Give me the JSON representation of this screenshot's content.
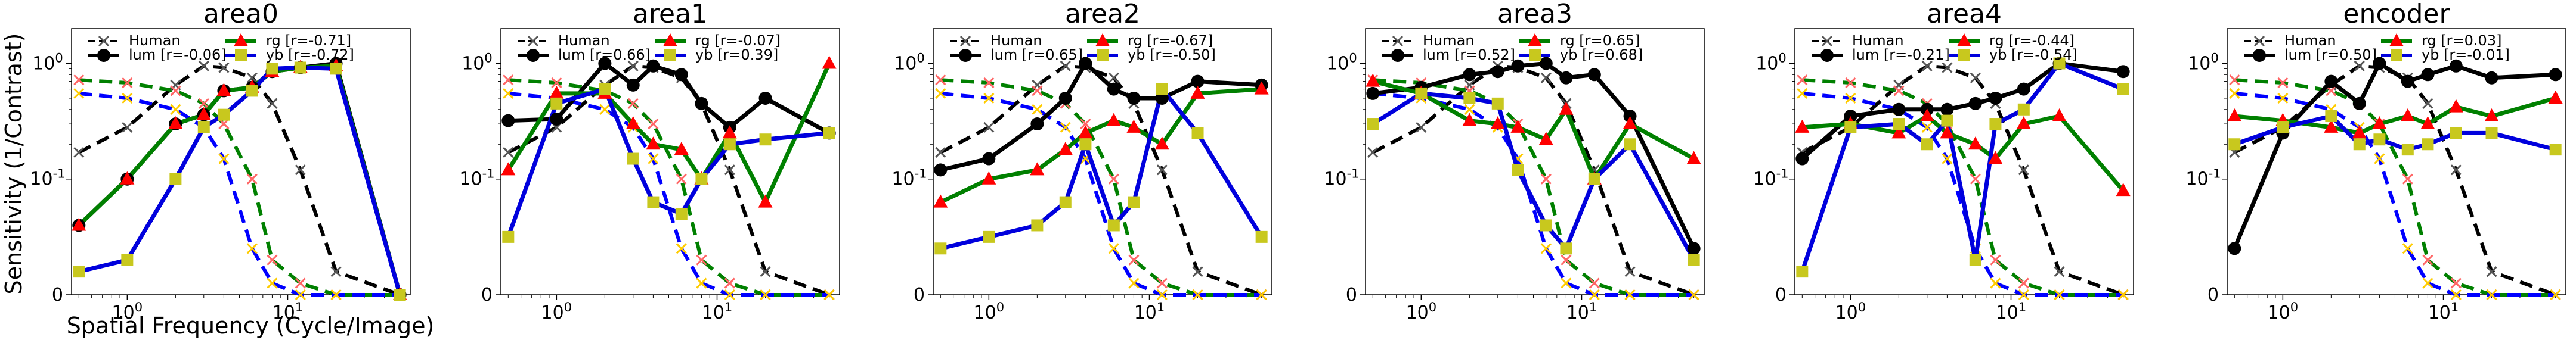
{
  "figure": {
    "ylabel": "Sensitivity (1/Contrast)",
    "xlabel": "Spatial Frequency (Cycle/Image)"
  },
  "colors": {
    "human_lum": "#222222",
    "human_rg": "#ff6666",
    "human_yb": "#ffcc00",
    "lum": "#000000",
    "rg": "#008000",
    "rg_marker": "#ff0000",
    "yb": "#0000dd",
    "yb_marker": "#c8c81e",
    "dashed_lum": "#000000",
    "dashed_rg": "#008000",
    "dashed_yb": "#0000ff"
  },
  "legend_labels": {
    "human": "Human",
    "lum": "lum",
    "rg": "rg",
    "yb": "yb"
  },
  "chart_data": [
    {
      "type": "line",
      "title": "area0",
      "xscale": "log",
      "yscale": "symlog",
      "xlim": [
        0.45,
        58
      ],
      "ylim": [
        0,
        2
      ],
      "xticks": [
        "10^0",
        "10^1"
      ],
      "yticks": [
        "0",
        "10^-1",
        "10^0"
      ],
      "legend": {
        "position": "top-center",
        "r": {
          "lum": "[r=-0.06]",
          "rg": "[r=-0.71]",
          "yb": "[r=-0.72]"
        }
      },
      "x": [
        0.5,
        1,
        2,
        3,
        4,
        6,
        8,
        12,
        20,
        50
      ],
      "human": {
        "lum": [
          0.17,
          0.28,
          0.65,
          0.95,
          0.92,
          0.75,
          0.45,
          0.12,
          0.02,
          0.0
        ],
        "rg": [
          0.72,
          0.68,
          0.58,
          0.45,
          0.3,
          0.1,
          0.03,
          0.01,
          0.0,
          0.0
        ],
        "yb": [
          0.55,
          0.5,
          0.4,
          0.28,
          0.15,
          0.04,
          0.01,
          0.0,
          0.0,
          0.0
        ]
      },
      "series": [
        {
          "name": "lum",
          "values": [
            0.06,
            0.1,
            0.3,
            0.36,
            0.58,
            0.62,
            0.85,
            0.92,
            1.0,
            0.0
          ]
        },
        {
          "name": "rg",
          "values": [
            0.06,
            0.1,
            0.3,
            0.36,
            0.58,
            0.62,
            0.85,
            0.92,
            0.95,
            0.0
          ]
        },
        {
          "name": "yb",
          "values": [
            0.02,
            0.03,
            0.1,
            0.28,
            0.36,
            0.58,
            0.9,
            0.92,
            0.9,
            0.0
          ]
        }
      ]
    },
    {
      "type": "line",
      "title": "area1",
      "xscale": "log",
      "yscale": "symlog",
      "xlim": [
        0.45,
        58
      ],
      "ylim": [
        0,
        2
      ],
      "xticks": [
        "10^0",
        "10^1"
      ],
      "yticks": [
        "0",
        "10^-1",
        "10^0"
      ],
      "legend": {
        "position": "top-center",
        "r": {
          "lum": "[r=0.66]",
          "rg": "[r=-0.07]",
          "yb": "[r=0.39]"
        }
      },
      "x": [
        0.5,
        1,
        2,
        3,
        4,
        6,
        8,
        12,
        20,
        50
      ],
      "human": {
        "lum": [
          0.17,
          0.28,
          0.65,
          0.95,
          0.92,
          0.75,
          0.45,
          0.12,
          0.02,
          0.0
        ],
        "rg": [
          0.72,
          0.68,
          0.58,
          0.45,
          0.3,
          0.1,
          0.03,
          0.01,
          0.0,
          0.0
        ],
        "yb": [
          0.55,
          0.5,
          0.4,
          0.28,
          0.15,
          0.04,
          0.01,
          0.0,
          0.0,
          0.0
        ]
      },
      "series": [
        {
          "name": "lum",
          "values": [
            0.32,
            0.33,
            1.0,
            0.65,
            0.95,
            0.8,
            0.45,
            0.28,
            0.5,
            0.25
          ]
        },
        {
          "name": "rg",
          "values": [
            0.12,
            0.55,
            0.55,
            0.3,
            0.2,
            0.18,
            0.1,
            0.25,
            0.08,
            1.0
          ]
        },
        {
          "name": "yb",
          "values": [
            0.05,
            0.45,
            0.6,
            0.15,
            0.08,
            0.07,
            0.1,
            0.2,
            0.22,
            0.25
          ]
        }
      ]
    },
    {
      "type": "line",
      "title": "area2",
      "xscale": "log",
      "yscale": "symlog",
      "xlim": [
        0.45,
        58
      ],
      "ylim": [
        0,
        2
      ],
      "xticks": [
        "10^0",
        "10^1"
      ],
      "yticks": [
        "0",
        "10^-1",
        "10^0"
      ],
      "legend": {
        "position": "top-center",
        "r": {
          "lum": "[r=0.65]",
          "rg": "[r=-0.67]",
          "yb": "[r=-0.50]"
        }
      },
      "x": [
        0.5,
        1,
        2,
        3,
        4,
        6,
        8,
        12,
        20,
        50
      ],
      "human": {
        "lum": [
          0.17,
          0.28,
          0.65,
          0.95,
          0.92,
          0.75,
          0.45,
          0.12,
          0.02,
          0.0
        ],
        "rg": [
          0.72,
          0.68,
          0.58,
          0.45,
          0.3,
          0.1,
          0.03,
          0.01,
          0.0,
          0.0
        ],
        "yb": [
          0.55,
          0.5,
          0.4,
          0.28,
          0.15,
          0.04,
          0.01,
          0.0,
          0.0,
          0.0
        ]
      },
      "series": [
        {
          "name": "lum",
          "values": [
            0.12,
            0.15,
            0.3,
            0.5,
            1.0,
            0.6,
            0.5,
            0.5,
            0.7,
            0.65
          ]
        },
        {
          "name": "rg",
          "values": [
            0.08,
            0.1,
            0.12,
            0.18,
            0.25,
            0.32,
            0.28,
            0.2,
            0.55,
            0.6
          ]
        },
        {
          "name": "yb",
          "values": [
            0.04,
            0.05,
            0.06,
            0.08,
            0.2,
            0.06,
            0.08,
            0.6,
            0.25,
            0.05
          ]
        }
      ]
    },
    {
      "type": "line",
      "title": "area3",
      "xscale": "log",
      "yscale": "symlog",
      "xlim": [
        0.45,
        58
      ],
      "ylim": [
        0,
        2
      ],
      "xticks": [
        "10^0",
        "10^1"
      ],
      "yticks": [
        "0",
        "10^-1",
        "10^0"
      ],
      "legend": {
        "position": "top-center",
        "r": {
          "lum": "[r=0.52]",
          "rg": "[r=0.65]",
          "yb": "[r=0.68]"
        }
      },
      "x": [
        0.5,
        1,
        2,
        3,
        4,
        6,
        8,
        12,
        20,
        50
      ],
      "human": {
        "lum": [
          0.17,
          0.28,
          0.65,
          0.95,
          0.92,
          0.75,
          0.45,
          0.12,
          0.02,
          0.0
        ],
        "rg": [
          0.72,
          0.68,
          0.58,
          0.45,
          0.3,
          0.1,
          0.03,
          0.01,
          0.0,
          0.0
        ],
        "yb": [
          0.55,
          0.5,
          0.4,
          0.28,
          0.15,
          0.04,
          0.01,
          0.0,
          0.0,
          0.0
        ]
      },
      "series": [
        {
          "name": "lum",
          "values": [
            0.55,
            0.62,
            0.8,
            0.85,
            0.95,
            1.0,
            0.75,
            0.8,
            0.35,
            0.04
          ]
        },
        {
          "name": "rg",
          "values": [
            0.7,
            0.55,
            0.32,
            0.3,
            0.28,
            0.22,
            0.4,
            0.1,
            0.3,
            0.15
          ]
        },
        {
          "name": "yb",
          "values": [
            0.3,
            0.55,
            0.5,
            0.45,
            0.12,
            0.06,
            0.04,
            0.1,
            0.2,
            0.03
          ]
        }
      ]
    },
    {
      "type": "line",
      "title": "area4",
      "xscale": "log",
      "yscale": "symlog",
      "xlim": [
        0.45,
        58
      ],
      "ylim": [
        0,
        2
      ],
      "xticks": [
        "10^0",
        "10^1"
      ],
      "yticks": [
        "0",
        "10^-1",
        "10^0"
      ],
      "legend": {
        "position": "top-center",
        "r": {
          "lum": "[r=-0.21]",
          "rg": "[r=-0.44]",
          "yb": "[r=-0.54]"
        }
      },
      "x": [
        0.5,
        1,
        2,
        3,
        4,
        6,
        8,
        12,
        20,
        50
      ],
      "human": {
        "lum": [
          0.17,
          0.28,
          0.65,
          0.95,
          0.92,
          0.75,
          0.45,
          0.12,
          0.02,
          0.0
        ],
        "rg": [
          0.72,
          0.68,
          0.58,
          0.45,
          0.3,
          0.1,
          0.03,
          0.01,
          0.0,
          0.0
        ],
        "yb": [
          0.55,
          0.5,
          0.4,
          0.28,
          0.15,
          0.04,
          0.01,
          0.0,
          0.0,
          0.0
        ]
      },
      "series": [
        {
          "name": "lum",
          "values": [
            0.15,
            0.35,
            0.4,
            0.4,
            0.4,
            0.45,
            0.5,
            0.6,
            1.0,
            0.85
          ]
        },
        {
          "name": "rg",
          "values": [
            0.28,
            0.3,
            0.25,
            0.35,
            0.25,
            0.2,
            0.15,
            0.3,
            0.35,
            0.09
          ]
        },
        {
          "name": "yb",
          "values": [
            0.02,
            0.28,
            0.3,
            0.2,
            0.32,
            0.03,
            0.3,
            0.4,
            1.0,
            0.6
          ]
        }
      ]
    },
    {
      "type": "line",
      "title": "encoder",
      "xscale": "log",
      "yscale": "symlog",
      "xlim": [
        0.45,
        58
      ],
      "ylim": [
        0,
        2
      ],
      "xticks": [
        "10^0",
        "10^1"
      ],
      "yticks": [
        "0",
        "10^-1",
        "10^0"
      ],
      "legend": {
        "position": "top-center",
        "r": {
          "lum": "[r=0.50]",
          "rg": "[r=0.03]",
          "yb": "[r=-0.01]"
        }
      },
      "x": [
        0.5,
        1,
        2,
        3,
        4,
        6,
        8,
        12,
        20,
        50
      ],
      "human": {
        "lum": [
          0.17,
          0.28,
          0.65,
          0.95,
          0.92,
          0.75,
          0.45,
          0.12,
          0.02,
          0.0
        ],
        "rg": [
          0.72,
          0.68,
          0.58,
          0.45,
          0.3,
          0.1,
          0.03,
          0.01,
          0.0,
          0.0
        ],
        "yb": [
          0.55,
          0.5,
          0.4,
          0.28,
          0.15,
          0.04,
          0.01,
          0.0,
          0.0,
          0.0
        ]
      },
      "series": [
        {
          "name": "lum",
          "values": [
            0.04,
            0.25,
            0.7,
            0.45,
            1.0,
            0.7,
            0.8,
            0.95,
            0.75,
            0.8
          ]
        },
        {
          "name": "rg",
          "values": [
            0.35,
            0.32,
            0.28,
            0.25,
            0.3,
            0.35,
            0.3,
            0.42,
            0.35,
            0.5
          ]
        },
        {
          "name": "yb",
          "values": [
            0.2,
            0.28,
            0.35,
            0.2,
            0.22,
            0.18,
            0.2,
            0.25,
            0.25,
            0.18
          ]
        }
      ]
    }
  ]
}
